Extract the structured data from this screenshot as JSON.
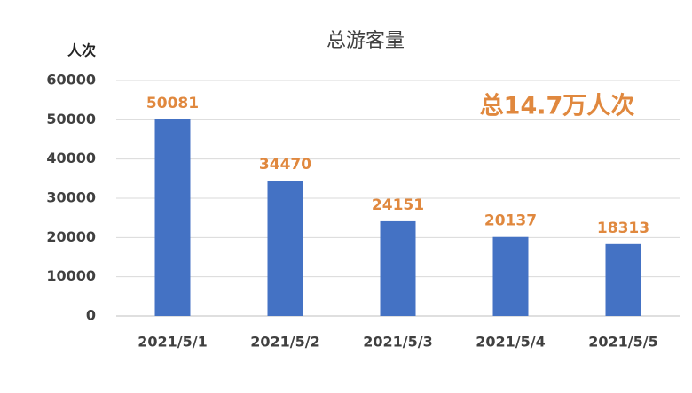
{
  "chart_data": {
    "type": "bar",
    "title": "总游客量",
    "y_label": "人次",
    "annotation": "总14.7万人次",
    "categories": [
      "2021/5/1",
      "2021/5/2",
      "2021/5/3",
      "2021/5/4",
      "2021/5/5"
    ],
    "values": [
      50081,
      34470,
      24151,
      20137,
      18313
    ],
    "color": "#4472c4",
    "label_color": "#e0883e",
    "ylim": [
      0,
      60000
    ],
    "yticks": [
      0,
      10000,
      20000,
      30000,
      40000,
      50000,
      60000
    ],
    "grid": true
  }
}
